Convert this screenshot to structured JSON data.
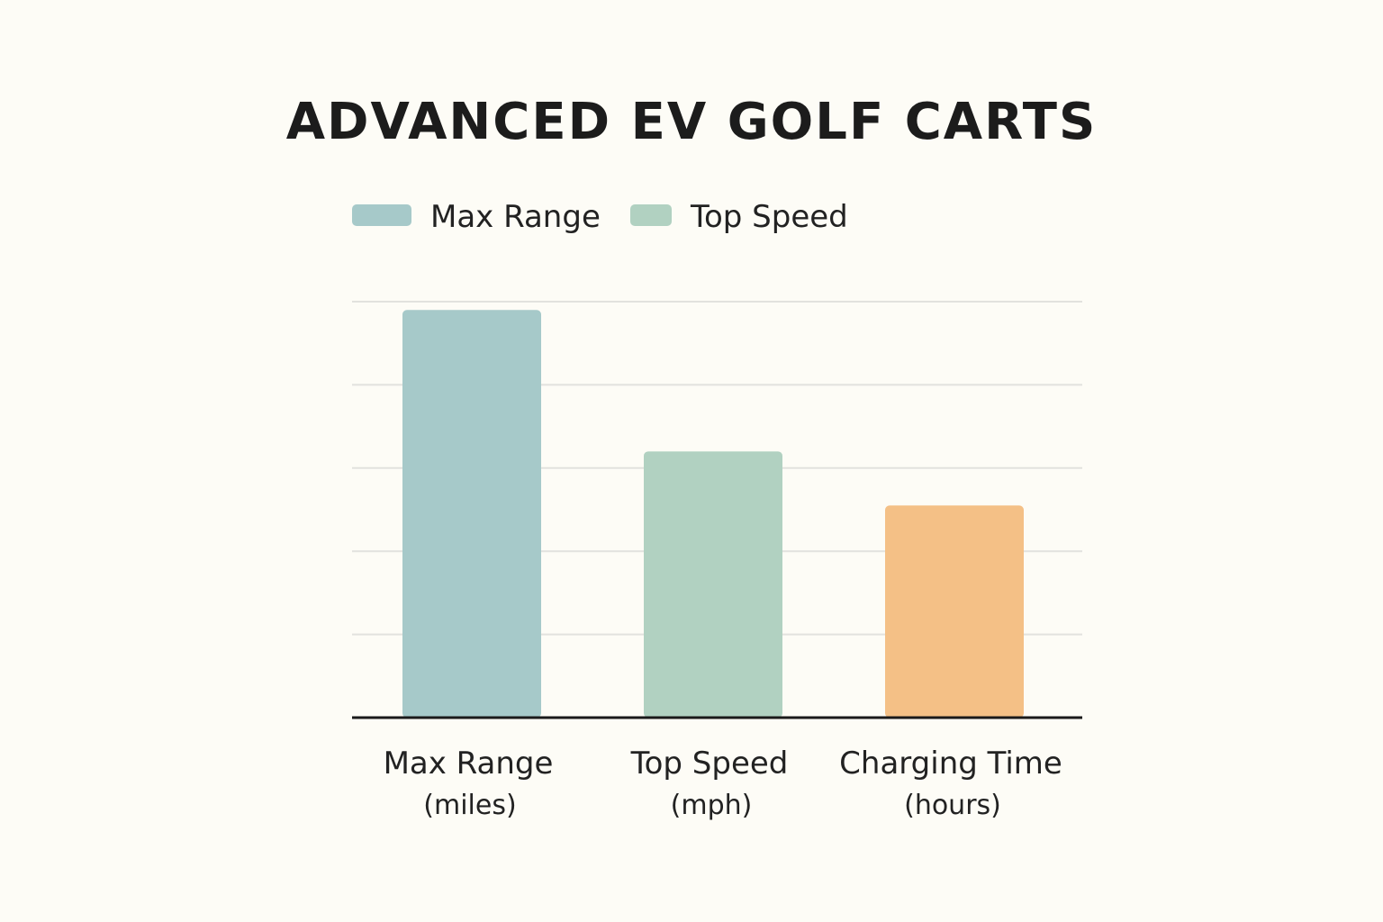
{
  "chart_data": {
    "type": "bar",
    "title": "ADVANCED EV GOLF CARTS",
    "categories": [
      {
        "label": "Max Range",
        "unit": "(miles)"
      },
      {
        "label": "Top Speed",
        "unit": "(mph)"
      },
      {
        "label": "Charging Time",
        "unit": "(hours)"
      }
    ],
    "values": [
      49,
      32,
      25.5
    ],
    "ylim": [
      0,
      50
    ],
    "grid": true,
    "gridlines": [
      0,
      10,
      20,
      30,
      40,
      50
    ],
    "bar_colors": [
      "#a6c9c9",
      "#b1d1c1",
      "#f4c086"
    ],
    "legend": {
      "placement": "top-left",
      "entries": [
        {
          "label": "Max Range",
          "color": "#a6c9c9"
        },
        {
          "label": "Top Speed",
          "color": "#b1d1c1"
        }
      ]
    },
    "xlabel": "",
    "ylabel": ""
  }
}
